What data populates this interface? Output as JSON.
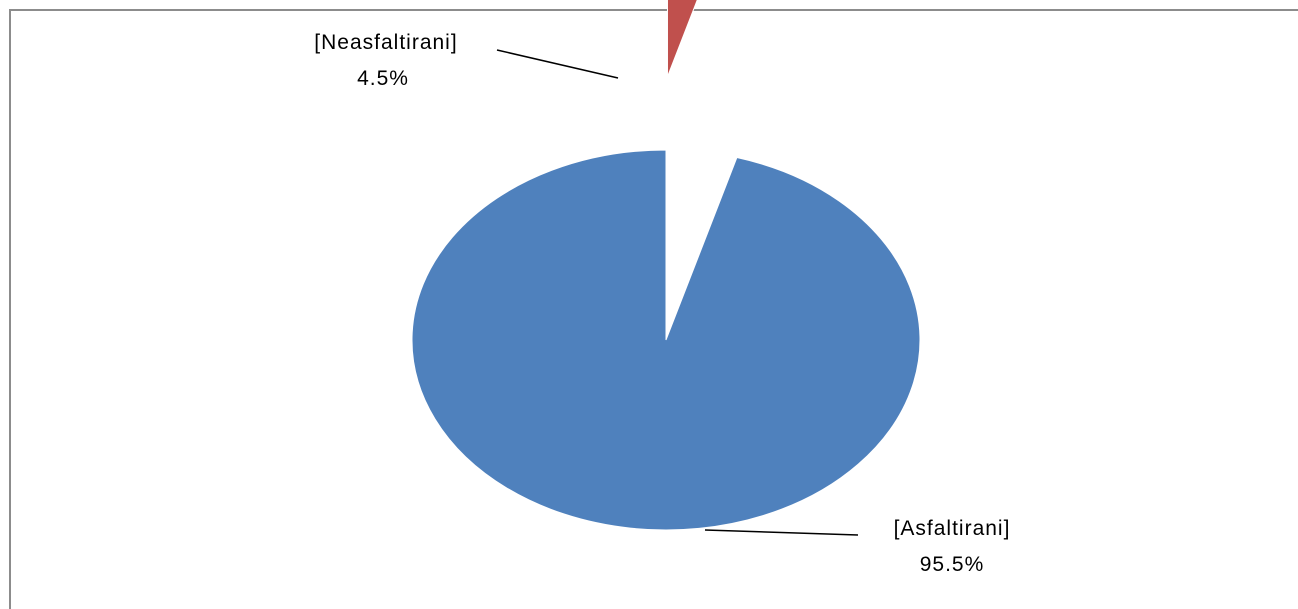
{
  "chart_data": {
    "type": "pie",
    "slices": [
      {
        "name": "[Asfaltirani]",
        "value": 95.5,
        "value_label": "95.5%",
        "color": "#4F81BD",
        "exploded": false
      },
      {
        "name": "[Neasfaltirani]",
        "value": 4.5,
        "value_label": "4.5%",
        "color": "#C0504D",
        "exploded": true
      }
    ],
    "start_angle": "12 o'clock",
    "direction": "counterclockwise"
  }
}
